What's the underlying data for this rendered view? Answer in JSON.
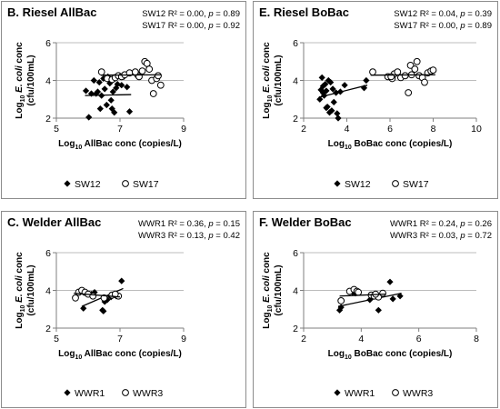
{
  "chart_data": [
    {
      "type": "scatter",
      "title": "B. Riesel AllBac",
      "stats": [
        "SW12 R² = 0.00, p = 0.89",
        "SW17 R² = 0.00, p = 0.92"
      ],
      "xlabel": "Log₁₀ AllBac conc (copies/L)",
      "ylabel": [
        "Log₁₀ E. coli conc",
        "(cfu/100mL)"
      ],
      "xlim": [
        5,
        9
      ],
      "xticks": [
        5,
        7,
        9
      ],
      "ylim": [
        2,
        6
      ],
      "yticks": [
        2,
        4,
        6
      ],
      "grid": "horizontal",
      "legend": [
        "SW12",
        "SW17"
      ],
      "series": [
        {
          "name": "SW12",
          "marker": "diamond-filled",
          "points": [
            [
              5.93,
              3.45
            ],
            [
              6.02,
              2.05
            ],
            [
              6.18,
              4.0
            ],
            [
              6.25,
              3.3
            ],
            [
              6.3,
              3.4
            ],
            [
              6.35,
              3.9
            ],
            [
              6.42,
              3.2
            ],
            [
              6.48,
              4.1
            ],
            [
              6.52,
              3.55
            ],
            [
              6.58,
              2.7
            ],
            [
              6.62,
              4.2
            ],
            [
              6.68,
              3.85
            ],
            [
              6.72,
              2.95
            ],
            [
              6.75,
              2.5
            ],
            [
              6.78,
              3.4
            ],
            [
              6.82,
              2.3
            ],
            [
              6.85,
              4.1
            ],
            [
              6.88,
              3.6
            ],
            [
              6.92,
              3.8
            ],
            [
              6.97,
              4.25
            ],
            [
              7.05,
              3.75
            ],
            [
              7.12,
              4.2
            ],
            [
              7.22,
              3.65
            ],
            [
              7.3,
              2.35
            ],
            [
              6.1,
              3.3
            ],
            [
              6.38,
              2.5
            ]
          ],
          "fit": [
            [
              5.9,
              3.2
            ],
            [
              7.35,
              3.25
            ]
          ]
        },
        {
          "name": "SW17",
          "marker": "circle-open",
          "points": [
            [
              6.42,
              4.45
            ],
            [
              6.6,
              4.1
            ],
            [
              6.75,
              4.05
            ],
            [
              6.85,
              4.15
            ],
            [
              6.95,
              4.25
            ],
            [
              7.05,
              4.2
            ],
            [
              7.15,
              4.3
            ],
            [
              7.3,
              4.4
            ],
            [
              7.55,
              4.3
            ],
            [
              7.7,
              4.5
            ],
            [
              7.78,
              5.0
            ],
            [
              7.85,
              4.9
            ],
            [
              7.92,
              4.6
            ],
            [
              8.0,
              4.0
            ],
            [
              8.05,
              3.3
            ],
            [
              8.15,
              4.1
            ],
            [
              8.2,
              4.25
            ],
            [
              8.28,
              3.75
            ],
            [
              7.6,
              4.2
            ],
            [
              7.48,
              4.45
            ]
          ],
          "fit": [
            [
              6.4,
              4.28
            ],
            [
              8.3,
              4.3
            ]
          ]
        }
      ]
    },
    {
      "type": "scatter",
      "title": "E. Riesel BoBac",
      "stats": [
        "SW12 R² = 0.04, p = 0.39",
        "SW17 R² = 0.00, p = 0.89"
      ],
      "xlabel": "Log₁₀ BoBac conc (copies/L)",
      "ylabel": [
        "Log₁₀ E. coli conc",
        "(cfu/100mL)"
      ],
      "xlim": [
        2,
        10
      ],
      "xticks": [
        2,
        4,
        6,
        8,
        10
      ],
      "ylim": [
        2,
        6
      ],
      "yticks": [
        2,
        4,
        6
      ],
      "grid": "horizontal",
      "legend": [
        "SW12",
        "SW17"
      ],
      "series": [
        {
          "name": "SW12",
          "marker": "diamond-filled",
          "points": [
            [
              2.75,
              3.0
            ],
            [
              2.8,
              3.5
            ],
            [
              2.85,
              4.15
            ],
            [
              2.9,
              3.35
            ],
            [
              2.95,
              3.2
            ],
            [
              3.0,
              3.8
            ],
            [
              3.05,
              3.45
            ],
            [
              3.1,
              2.6
            ],
            [
              3.15,
              4.0
            ],
            [
              3.2,
              2.3
            ],
            [
              3.25,
              3.9
            ],
            [
              3.3,
              2.4
            ],
            [
              3.35,
              3.55
            ],
            [
              3.4,
              2.85
            ],
            [
              3.5,
              3.35
            ],
            [
              3.55,
              2.25
            ],
            [
              3.6,
              2.0
            ],
            [
              3.7,
              3.4
            ],
            [
              3.9,
              3.75
            ],
            [
              4.8,
              3.6
            ],
            [
              4.9,
              4.0
            ],
            [
              2.9,
              3.7
            ],
            [
              3.05,
              2.55
            ]
          ],
          "fit": [
            [
              2.7,
              3.1
            ],
            [
              4.95,
              3.75
            ]
          ]
        },
        {
          "name": "SW17",
          "marker": "circle-open",
          "points": [
            [
              5.2,
              4.45
            ],
            [
              5.9,
              4.2
            ],
            [
              6.1,
              4.1
            ],
            [
              6.2,
              4.35
            ],
            [
              6.35,
              4.45
            ],
            [
              6.5,
              4.15
            ],
            [
              6.7,
              4.25
            ],
            [
              6.85,
              3.35
            ],
            [
              6.95,
              4.8
            ],
            [
              7.0,
              4.3
            ],
            [
              7.15,
              4.6
            ],
            [
              7.25,
              5.0
            ],
            [
              7.35,
              4.25
            ],
            [
              7.5,
              4.15
            ],
            [
              7.6,
              3.9
            ],
            [
              7.75,
              4.4
            ],
            [
              7.9,
              4.5
            ],
            [
              8.0,
              4.55
            ],
            [
              6.05,
              4.2
            ]
          ],
          "fit": [
            [
              5.1,
              4.28
            ],
            [
              8.1,
              4.3
            ]
          ]
        }
      ]
    },
    {
      "type": "scatter",
      "title": "C. Welder AllBac",
      "stats": [
        "WWR1 R² = 0.36, p = 0.15",
        "WWR3 R² = 0.13, p = 0.42"
      ],
      "xlabel": "Log₁₀ AllBac conc (copies/L)",
      "ylabel": [
        "Log₁₀ E. coli conc",
        "(cfu/100mL)"
      ],
      "xlim": [
        5,
        9
      ],
      "xticks": [
        5,
        7,
        9
      ],
      "ylim": [
        2,
        6
      ],
      "yticks": [
        2,
        4,
        6
      ],
      "grid": "horizontal",
      "legend": [
        "WWR1",
        "WWR3"
      ],
      "series": [
        {
          "name": "WWR1",
          "marker": "diamond-filled",
          "points": [
            [
              5.85,
              3.05
            ],
            [
              6.1,
              3.8
            ],
            [
              6.2,
              3.9
            ],
            [
              6.45,
              2.95
            ],
            [
              6.52,
              3.4
            ],
            [
              6.6,
              3.5
            ],
            [
              6.72,
              3.65
            ],
            [
              6.88,
              3.7
            ],
            [
              7.05,
              4.5
            ],
            [
              6.48,
              2.9
            ]
          ],
          "fit": [
            [
              5.8,
              3.15
            ],
            [
              7.1,
              4.1
            ]
          ]
        },
        {
          "name": "WWR3",
          "marker": "circle-open",
          "points": [
            [
              5.6,
              3.6
            ],
            [
              5.7,
              3.9
            ],
            [
              5.8,
              4.0
            ],
            [
              5.9,
              3.9
            ],
            [
              6.0,
              3.8
            ],
            [
              6.15,
              3.7
            ],
            [
              6.5,
              3.6
            ],
            [
              6.75,
              3.75
            ],
            [
              6.95,
              3.7
            ],
            [
              6.85,
              3.8
            ]
          ],
          "fit": [
            [
              5.55,
              3.85
            ],
            [
              7.0,
              3.65
            ]
          ]
        }
      ]
    },
    {
      "type": "scatter",
      "title": "F. Welder BoBac",
      "stats": [
        "WWR1 R² = 0.24, p = 0.26",
        "WWR3 R² = 0.03, p = 0.72"
      ],
      "xlabel": "Log₁₀ BoBac conc (copies/L)",
      "ylabel": [
        "Log₁₀ E. coli conc",
        "(cfu/100mL)"
      ],
      "xlim": [
        2,
        8
      ],
      "xticks": [
        2,
        4,
        6,
        8
      ],
      "ylim": [
        2,
        6
      ],
      "yticks": [
        2,
        4,
        6
      ],
      "grid": "horizontal",
      "legend": [
        "WWR1",
        "WWR3"
      ],
      "series": [
        {
          "name": "WWR1",
          "marker": "diamond-filled",
          "points": [
            [
              3.25,
              2.95
            ],
            [
              3.3,
              3.1
            ],
            [
              3.7,
              3.9
            ],
            [
              3.8,
              3.85
            ],
            [
              4.5,
              3.7
            ],
            [
              4.6,
              2.95
            ],
            [
              5.0,
              4.45
            ],
            [
              5.1,
              3.55
            ],
            [
              5.35,
              3.7
            ],
            [
              4.3,
              3.5
            ]
          ],
          "fit": [
            [
              3.2,
              3.15
            ],
            [
              5.4,
              3.85
            ]
          ]
        },
        {
          "name": "WWR3",
          "marker": "circle-open",
          "points": [
            [
              3.3,
              3.45
            ],
            [
              3.6,
              3.95
            ],
            [
              3.75,
              4.05
            ],
            [
              3.85,
              3.95
            ],
            [
              4.35,
              3.75
            ],
            [
              4.45,
              3.7
            ],
            [
              4.6,
              3.65
            ],
            [
              4.75,
              3.85
            ],
            [
              4.5,
              3.8
            ],
            [
              3.9,
              3.9
            ]
          ],
          "fit": [
            [
              3.25,
              3.7
            ],
            [
              4.85,
              3.8
            ]
          ]
        }
      ]
    }
  ]
}
